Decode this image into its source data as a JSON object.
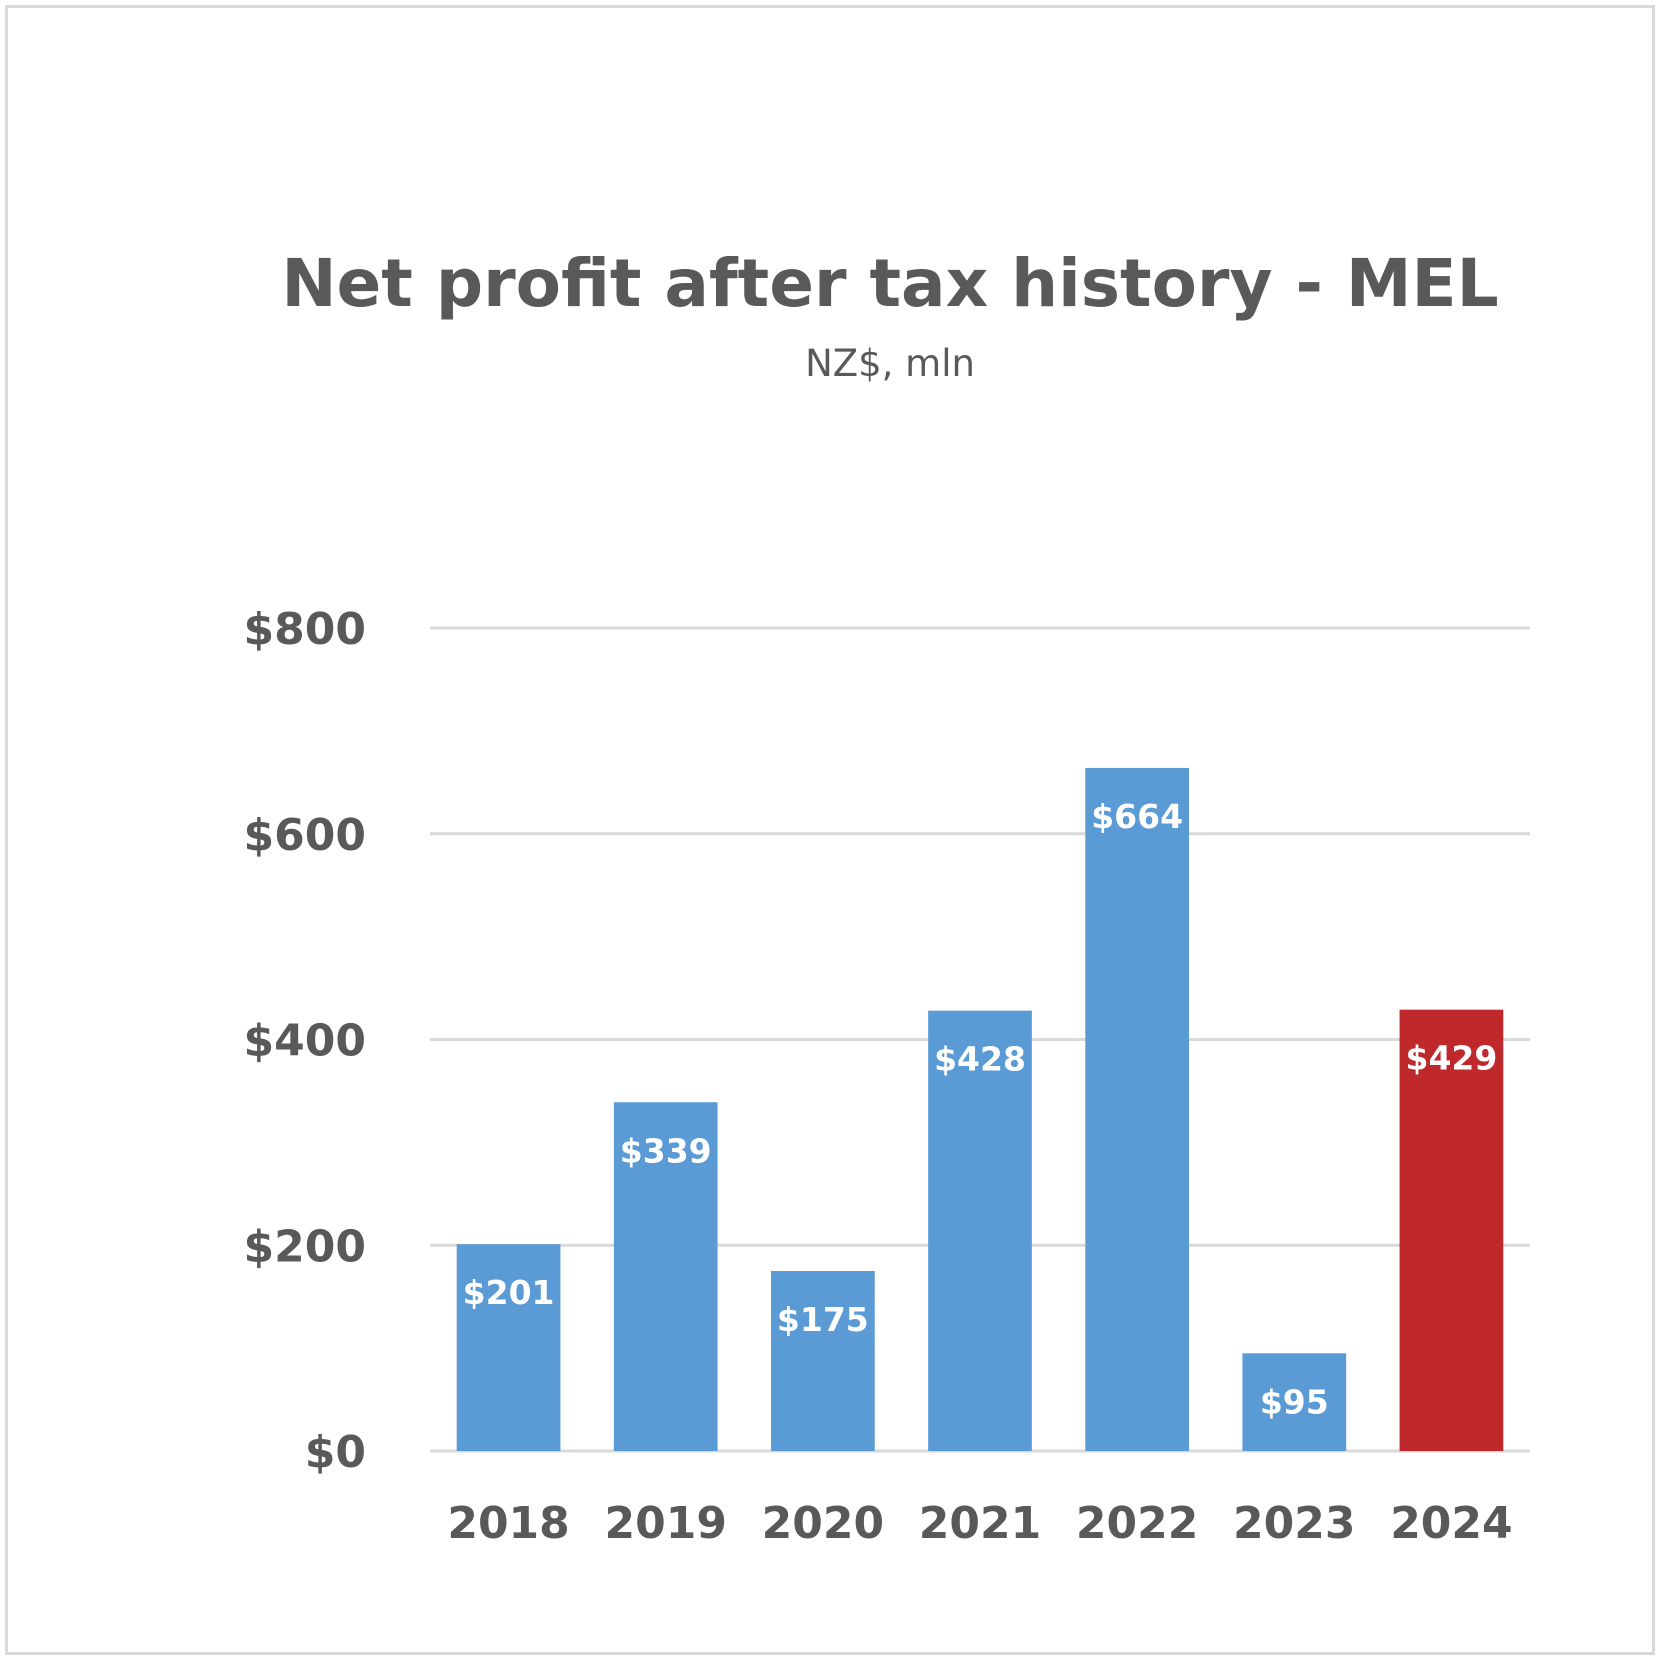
{
  "chart_data": {
    "type": "bar",
    "title": "Net profit after tax history - MEL",
    "subtitle": "NZ$, mln",
    "categories": [
      "2018",
      "2019",
      "2020",
      "2021",
      "2022",
      "2023",
      "2024"
    ],
    "values": [
      201,
      339,
      175,
      428,
      664,
      95,
      429
    ],
    "data_labels": [
      "$201",
      "$339",
      "$175",
      "$428",
      "$664",
      "$95",
      "$429"
    ],
    "bar_colors": [
      "#5b9bd5",
      "#5b9bd5",
      "#5b9bd5",
      "#5b9bd5",
      "#5b9bd5",
      "#5b9bd5",
      "#c0292b"
    ],
    "yticks": [
      0,
      200,
      400,
      600,
      800
    ],
    "ytick_labels": [
      "$0",
      "$200",
      "$400",
      "$600",
      "$800"
    ],
    "ylim": [
      0,
      800
    ],
    "grid": true,
    "legend": "none",
    "colors": {
      "primary": "#5b9bd5",
      "highlight": "#c0292b",
      "text": "#595959",
      "grid": "#d9d9d9"
    }
  }
}
